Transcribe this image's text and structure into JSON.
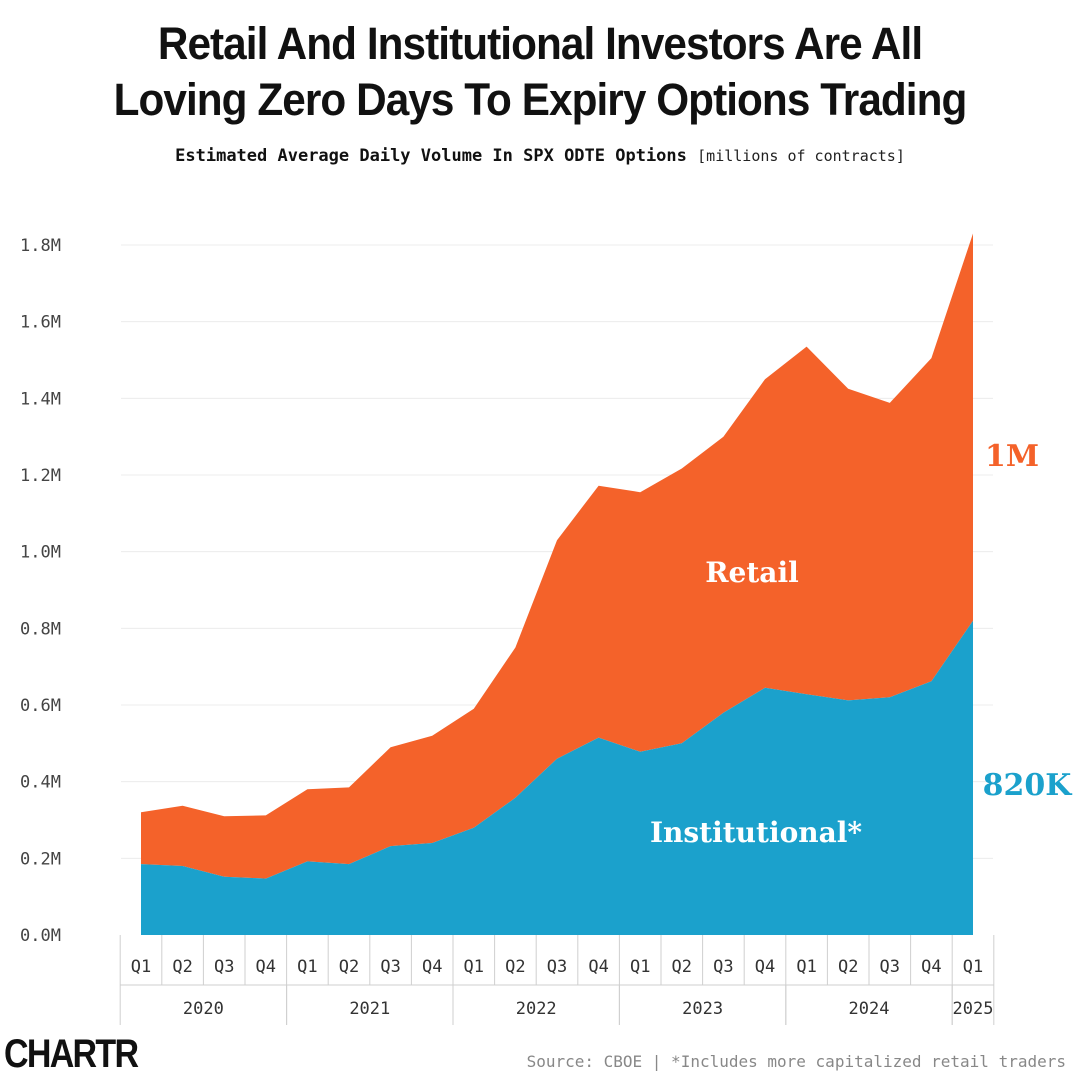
{
  "header": {
    "title_line1": "Retail And Institutional Investors Are All",
    "title_line2": "Loving Zero Days To Expiry Options Trading",
    "subtitle": "Estimated Average Daily Volume In SPX ODTE Options",
    "unit": "[millions of contracts]"
  },
  "footer": {
    "brand": "CHARTR",
    "source": "Source: CBOE | *Includes more capitalized retail traders"
  },
  "colors": {
    "retail": "#F4622A",
    "institutional": "#1BA1CC",
    "grid": "#ececec"
  },
  "chart_data": {
    "type": "area",
    "stacked": true,
    "categories": [
      "Q1",
      "Q2",
      "Q3",
      "Q4",
      "Q1",
      "Q2",
      "Q3",
      "Q4",
      "Q1",
      "Q2",
      "Q3",
      "Q4",
      "Q1",
      "Q2",
      "Q3",
      "Q4",
      "Q1",
      "Q2",
      "Q3",
      "Q4",
      "Q1"
    ],
    "years": [
      {
        "label": "2020",
        "start": 0,
        "end": 3
      },
      {
        "label": "2021",
        "start": 4,
        "end": 7
      },
      {
        "label": "2022",
        "start": 8,
        "end": 11
      },
      {
        "label": "2023",
        "start": 12,
        "end": 15
      },
      {
        "label": "2024",
        "start": 16,
        "end": 19
      },
      {
        "label": "2025",
        "start": 20,
        "end": 20
      }
    ],
    "series": [
      {
        "name": "Institutional*",
        "values": [
          0.185,
          0.18,
          0.152,
          0.147,
          0.192,
          0.185,
          0.232,
          0.24,
          0.28,
          0.358,
          0.46,
          0.515,
          0.478,
          0.5,
          0.58,
          0.645,
          0.628,
          0.612,
          0.62,
          0.662,
          0.82
        ]
      },
      {
        "name": "Retail",
        "values": [
          0.135,
          0.157,
          0.158,
          0.165,
          0.188,
          0.2,
          0.258,
          0.28,
          0.31,
          0.392,
          0.57,
          0.657,
          0.677,
          0.717,
          0.72,
          0.805,
          0.907,
          0.813,
          0.768,
          0.843,
          1.01
        ]
      }
    ],
    "end_labels": {
      "retail": "1M",
      "institutional": "820K"
    },
    "yticks": [
      "0.0M",
      "0.2M",
      "0.4M",
      "0.6M",
      "0.8M",
      "1.0M",
      "1.2M",
      "1.4M",
      "1.6M",
      "1.8M"
    ],
    "ylim": [
      0,
      1.8
    ],
    "grid": true,
    "xlabel": "",
    "ylabel": ""
  }
}
